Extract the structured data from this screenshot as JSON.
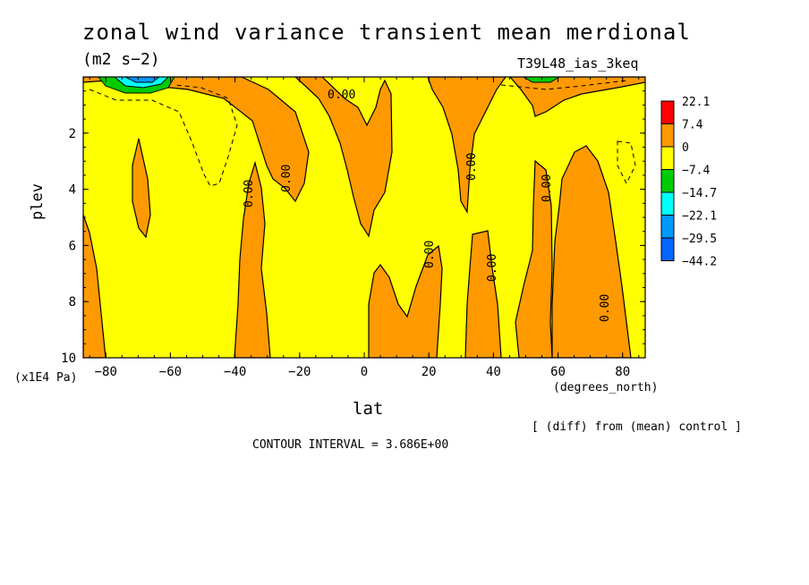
{
  "chart_data": {
    "type": "heatmap",
    "title": "zonal wind variance transient mean merdional",
    "units": "(m2 s−2)",
    "run_name": "T39L48_ias_3keq",
    "xlabel": "lat",
    "xunits": "(degrees_north)",
    "ylabel": "plev",
    "yunits": "(x1E4 Pa)",
    "xlim": [
      -87,
      87
    ],
    "ylim": [
      10,
      0
    ],
    "x_ticks": [
      "−80",
      "−60",
      "−40",
      "−20",
      "0",
      "20",
      "40",
      "60",
      "80"
    ],
    "x_tick_values": [
      -80,
      -60,
      -40,
      -20,
      0,
      20,
      40,
      60,
      80
    ],
    "y_ticks": [
      "2",
      "4",
      "6",
      "8",
      "10"
    ],
    "y_tick_values": [
      2,
      4,
      6,
      8,
      10
    ],
    "contour_labels": [
      "0.00",
      "0.00",
      "0.00",
      "0.00",
      "0.00",
      "0.00",
      "0.00",
      "0.00"
    ],
    "contour_interval_text": "CONTOUR INTERVAL = 3.686E+00",
    "note": "[ (diff) from (mean) control ]",
    "colorbar": {
      "labels": [
        "22.1",
        "7.4",
        "0",
        "−7.4",
        "−14.7",
        "−22.1",
        "−29.5",
        "−44.2"
      ],
      "colors": [
        "#ff0000",
        "#ff9900",
        "#ffff00",
        "#00cc00",
        "#00ffff",
        "#0099ff",
        "#0066ff"
      ]
    }
  }
}
